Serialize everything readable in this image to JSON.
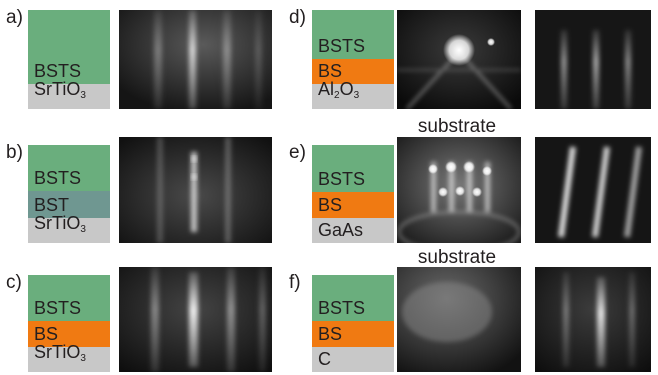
{
  "panels": [
    {
      "id": "a",
      "label": "a)",
      "layers": [
        {
          "text": "BSTS",
          "color": "#6aae7d"
        },
        {
          "text": "SrTiO",
          "sub": "3",
          "color": "#c8c8c8"
        }
      ],
      "images": 1
    },
    {
      "id": "b",
      "label": "b)",
      "layers": [
        {
          "text": "BSTS",
          "color": "#6aae7d"
        },
        {
          "text": "BST",
          "color": "#6f9791"
        },
        {
          "text": "SrTiO",
          "sub": "3",
          "color": "#c8c8c8"
        }
      ],
      "images": 1
    },
    {
      "id": "c",
      "label": "c)",
      "layers": [
        {
          "text": "BSTS",
          "color": "#6aae7d"
        },
        {
          "text": "BS",
          "color": "#f07a12"
        },
        {
          "text": "SrTiO",
          "sub": "3",
          "color": "#c8c8c8"
        }
      ],
      "images": 1
    },
    {
      "id": "d",
      "label": "d)",
      "layers": [
        {
          "text": "BSTS",
          "color": "#6aae7d"
        },
        {
          "text": "BS",
          "color": "#f07a12"
        },
        {
          "text": "Al",
          "sub": "2",
          "text2": "O",
          "sub2": "3",
          "color": "#c8c8c8"
        }
      ],
      "images": 2,
      "note": "substrate"
    },
    {
      "id": "e",
      "label": "e)",
      "layers": [
        {
          "text": "BSTS",
          "color": "#6aae7d"
        },
        {
          "text": "BS",
          "color": "#f07a12"
        },
        {
          "text": "GaAs",
          "color": "#c8c8c8"
        }
      ],
      "images": 2,
      "note": "substrate"
    },
    {
      "id": "f",
      "label": "f)",
      "layers": [
        {
          "text": "BSTS",
          "color": "#6aae7d"
        },
        {
          "text": "BS",
          "color": "#f07a12"
        },
        {
          "text": "C",
          "color": "#c8c8c8"
        }
      ],
      "images": 2
    }
  ]
}
